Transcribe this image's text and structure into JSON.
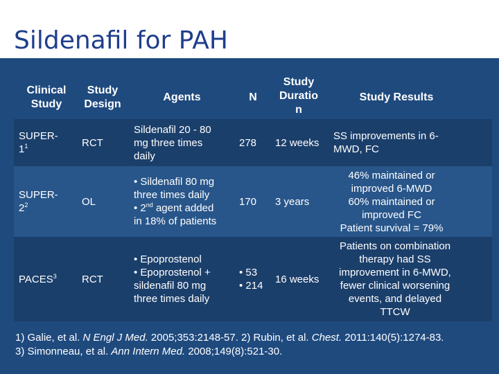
{
  "title": "Sildenafil for PAH",
  "headers": {
    "clinical_study": "Clinical\nStudy",
    "study_design": "Study\nDesign",
    "agents": "Agents",
    "n": "N",
    "study_duration": "Study\nDuratio\nn",
    "study_results": "Study Results"
  },
  "rows": [
    {
      "study": "SUPER-\n1",
      "study_sup": "1",
      "design": "RCT",
      "agents": "Sildenafil 20 - 80\nmg three times\ndaily",
      "n": "278",
      "duration": "12 weeks",
      "results": "SS improvements in 6-\nMWD, FC"
    },
    {
      "study": "SUPER-\n2",
      "study_sup": "2",
      "design": "OL",
      "agents_lines": [
        "• Sildenafil 80 mg",
        "three times daily",
        "• 2",
        "nd",
        " agent added",
        "in 18% of patients"
      ],
      "n": "170",
      "duration": "3 years",
      "results": "46% maintained or\nimproved 6-MWD\n60% maintained or\nimproved FC\nPatient survival = 79%"
    },
    {
      "study": "PACES",
      "study_sup": "3",
      "design": "RCT",
      "agents": "• Epoprostenol\n• Epoprostenol +\nsildenafil 80 mg\nthree times daily",
      "n": "• 53\n• 214",
      "duration": "16 weeks",
      "results": "Patients on combination\ntherapy had SS\nimprovement in 6-MWD,\nfewer clinical worsening\nevents, and delayed\nTTCW"
    }
  ],
  "footer": {
    "line1_a": "1) Galie, et al. ",
    "line1_b": "N Engl J Med.",
    "line1_c": " 2005;353:2148-57.  2) Rubin, et al. ",
    "line1_d": "Chest.",
    "line1_e": " 2011:140(5):1274-83.",
    "line2_a": "3) Simonneau, et al. ",
    "line2_b": "Ann Intern Med.",
    "line2_c": " 2008;149(8):521-30."
  }
}
